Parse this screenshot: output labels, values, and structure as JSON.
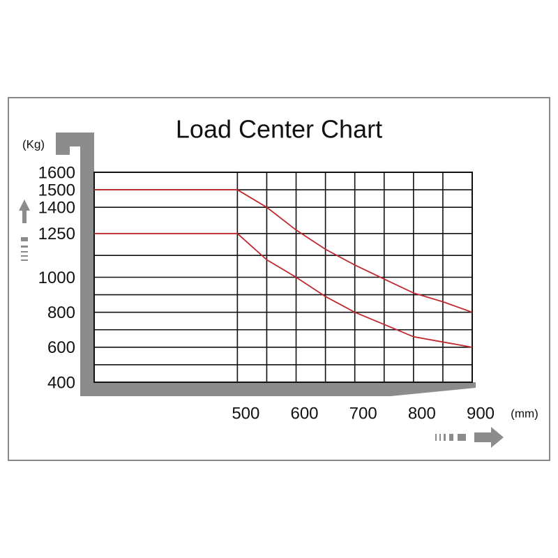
{
  "chart_data": {
    "type": "line",
    "title": "Load Center Chart",
    "y_unit": "(Kg)",
    "x_unit": "(mm)",
    "x": [
      256,
      500,
      550,
      600,
      650,
      700,
      750,
      800,
      850,
      900
    ],
    "series": [
      {
        "color": "#c0282d",
        "values": [
          1500,
          1500,
          1400,
          1270,
          1160,
          1070,
          990,
          910,
          860,
          800
        ]
      },
      {
        "color": "#c0282d",
        "values": [
          1250,
          1250,
          1100,
          1000,
          890,
          800,
          730,
          660,
          630,
          600
        ]
      }
    ],
    "xlim": [
      256,
      900
    ],
    "ylim": [
      400,
      1600
    ],
    "xticks": [
      500,
      600,
      700,
      800,
      900
    ],
    "yticks": [
      400,
      600,
      800,
      1000,
      1250,
      1400,
      1500,
      1600
    ],
    "xgrid": [
      500,
      550,
      600,
      650,
      700,
      750,
      800,
      850,
      900
    ],
    "ygrid": [
      500,
      600,
      700,
      800,
      900,
      1000,
      1125,
      1250,
      1400,
      1500
    ],
    "grid": true
  }
}
